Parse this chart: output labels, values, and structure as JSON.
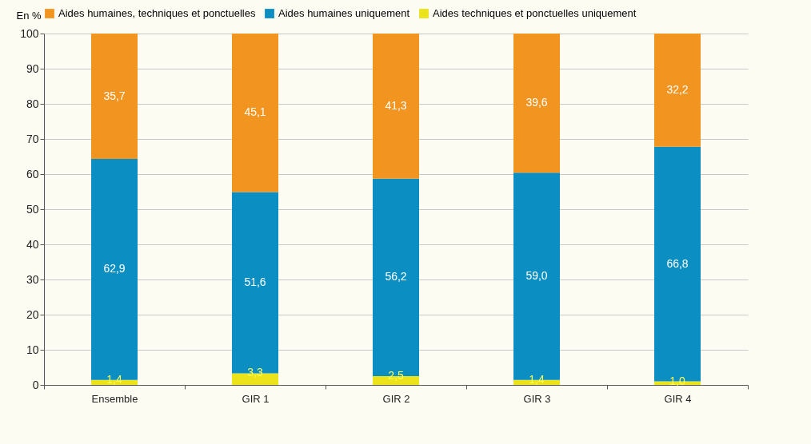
{
  "chart_data": {
    "type": "bar",
    "stacked": true,
    "ylabel": "En %",
    "categories": [
      "Ensemble",
      "GIR 1",
      "GIR 2",
      "GIR 3",
      "GIR 4"
    ],
    "series": [
      {
        "name": "Aides techniques et ponctuelles uniquement",
        "color": "#ece31a",
        "values": [
          1.4,
          3.3,
          2.5,
          1.4,
          1.0
        ],
        "value_labels": [
          "1,4",
          "3,3",
          "2,5",
          "1,4",
          "1,0"
        ]
      },
      {
        "name": "Aides humaines uniquement",
        "color": "#0b8fc3",
        "values": [
          62.9,
          51.6,
          56.2,
          59.0,
          66.8
        ],
        "value_labels": [
          "62,9",
          "51,6",
          "56,2",
          "59,0",
          "66,8"
        ]
      },
      {
        "name": "Aides humaines, techniques et ponctuelles",
        "color": "#f29420",
        "values": [
          35.7,
          45.1,
          41.3,
          39.6,
          32.2
        ],
        "value_labels": [
          "35,7",
          "45,1",
          "41,3",
          "39,6",
          "32,2"
        ]
      }
    ],
    "ylim": [
      0,
      100
    ],
    "yticks": [
      0,
      10,
      20,
      30,
      40,
      50,
      60,
      70,
      80,
      90,
      100
    ],
    "grid": "y",
    "legend": "top"
  }
}
